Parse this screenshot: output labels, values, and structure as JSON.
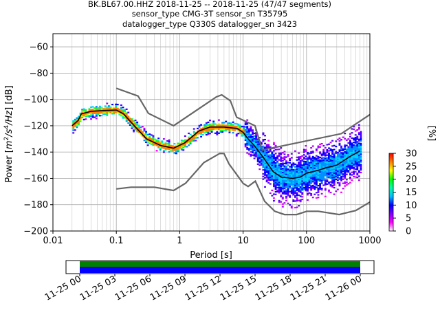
{
  "chart_data": {
    "type": "heatmap",
    "title_lines": [
      "BK.BL67.00.HHZ   2018-11-25 -- 2018-11-25  (47/47 segments)",
      "sensor_type CMG-3T sensor_sn T35795",
      "datalogger_type Q330S datalogger_sn 3423"
    ],
    "xlabel": "Period [s]",
    "ylabel_parts": [
      "Power [",
      "m",
      "2",
      "/s",
      "4",
      "/Hz",
      "] [dB]"
    ],
    "xscale": "log",
    "xlim": [
      0.01,
      1000
    ],
    "ylim": [
      -200,
      -50
    ],
    "x_ticks": [
      0.01,
      0.1,
      1,
      10,
      100,
      1000
    ],
    "x_tick_labels": [
      "0.01",
      "0.1",
      "1",
      "10",
      "100",
      "1000"
    ],
    "y_ticks": [
      -200,
      -180,
      -160,
      -140,
      -120,
      -100,
      -80,
      -60
    ],
    "y_tick_labels": [
      "−200",
      "−180",
      "−160",
      "−140",
      "−120",
      "−100",
      "−80",
      "−60"
    ],
    "grid": true,
    "colorbar": {
      "label": "[%]",
      "min": 0,
      "max": 30,
      "ticks": [
        0,
        5,
        10,
        15,
        20,
        25,
        30
      ],
      "tick_labels": [
        "0",
        "5",
        "10",
        "15",
        "20",
        "25",
        "30"
      ],
      "colors": [
        "#ffffff",
        "#ff00ff",
        "#8000ff",
        "#0000ff",
        "#00bfff",
        "#00ffaa",
        "#00ff00",
        "#ffff00",
        "#ff8000",
        "#ff0000"
      ]
    },
    "noise_models": {
      "color": "#666666",
      "high": [
        [
          0.1,
          -91.5
        ],
        [
          0.22,
          -97.4
        ],
        [
          0.32,
          -110.5
        ],
        [
          0.8,
          -120
        ],
        [
          3.8,
          -98
        ],
        [
          4.6,
          -96.5
        ],
        [
          6.3,
          -101
        ],
        [
          7.9,
          -113.5
        ],
        [
          15.4,
          -120
        ],
        [
          20,
          -138.5
        ],
        [
          354.8,
          -126
        ],
        [
          1000,
          -111.5
        ]
      ],
      "low": [
        [
          0.1,
          -168
        ],
        [
          0.17,
          -166.7
        ],
        [
          0.4,
          -166.7
        ],
        [
          0.8,
          -169.2
        ],
        [
          1.24,
          -163.7
        ],
        [
          2.4,
          -148
        ],
        [
          4.3,
          -141
        ],
        [
          5,
          -141.1
        ],
        [
          6,
          -149
        ],
        [
          10,
          -163.8
        ],
        [
          12,
          -166.2
        ],
        [
          15.6,
          -162.1
        ],
        [
          21.9,
          -177.5
        ],
        [
          31.6,
          -185
        ],
        [
          45,
          -187.5
        ],
        [
          70,
          -187.5
        ],
        [
          101,
          -185
        ],
        [
          154,
          -185
        ],
        [
          328,
          -187.5
        ],
        [
          600,
          -184.4
        ],
        [
          1000,
          -178
        ]
      ]
    },
    "mode_line": {
      "color": "#000000",
      "points": [
        [
          0.02,
          -120
        ],
        [
          0.025,
          -116
        ],
        [
          0.028,
          -111
        ],
        [
          0.04,
          -109
        ],
        [
          0.06,
          -108.5
        ],
        [
          0.1,
          -108
        ],
        [
          0.13,
          -111
        ],
        [
          0.2,
          -121
        ],
        [
          0.3,
          -130
        ],
        [
          0.5,
          -135
        ],
        [
          0.8,
          -137
        ],
        [
          1.2,
          -133
        ],
        [
          1.6,
          -128
        ],
        [
          2,
          -124
        ],
        [
          3,
          -121
        ],
        [
          5,
          -121
        ],
        [
          8,
          -122
        ],
        [
          10,
          -125
        ],
        [
          12,
          -130
        ],
        [
          15,
          -135
        ],
        [
          20,
          -143
        ],
        [
          30,
          -155
        ],
        [
          40,
          -159
        ],
        [
          60,
          -160
        ],
        [
          80,
          -159
        ],
        [
          100,
          -156
        ],
        [
          150,
          -154
        ],
        [
          200,
          -152
        ],
        [
          300,
          -150
        ],
        [
          400,
          -146
        ],
        [
          500,
          -143
        ],
        [
          600,
          -141
        ],
        [
          700,
          -139
        ]
      ]
    },
    "availability": {
      "start_label": "11-25 00",
      "end_label": "11-26 00",
      "time_ticks": [
        "11-25 00",
        "11-25 03",
        "11-25 06",
        "11-25 09",
        "11-25 12",
        "11-25 15",
        "11-25 18",
        "11-25 21",
        "11-26 00"
      ],
      "coverage": [
        0,
        1
      ],
      "colors": {
        "data": "#008000",
        "used": "#0000ff"
      }
    }
  }
}
